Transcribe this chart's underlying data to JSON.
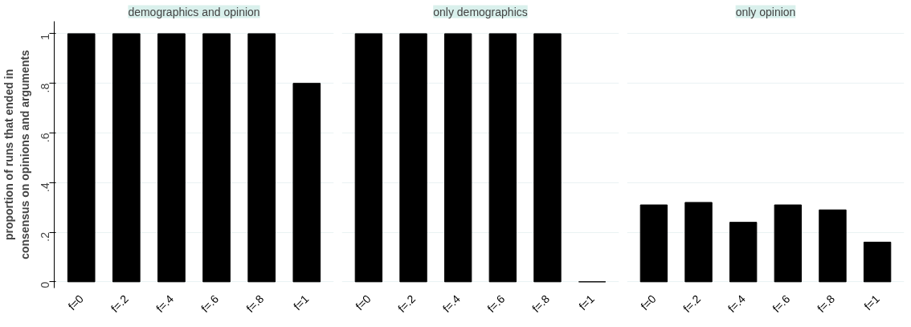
{
  "chart_data": [
    {
      "type": "bar",
      "title": "demographics and opinion",
      "ylabel": "proportion of runs that ended in\nconsensus on opinions and arguments",
      "categories": [
        "f=0",
        "f=.2",
        "f=.4",
        "f=.6",
        "f=.8",
        "f=1"
      ],
      "values": [
        1,
        1,
        1,
        1,
        1,
        0.8
      ],
      "color": "#000000",
      "ylim": [
        -0.025,
        1.05
      ],
      "yticks": [
        0,
        {
          "value": 0.2,
          "label": ".2"
        },
        {
          "value": 0.4,
          "label": ".4"
        },
        {
          "value": 0.6,
          "label": ".6"
        },
        {
          "value": 0.8,
          "label": ".8"
        },
        1
      ],
      "grid": "y"
    },
    {
      "type": "bar",
      "title": "only demographics",
      "categories": [
        "f=0",
        "f=.2",
        "f=.4",
        "f=.6",
        "f=.8",
        "f=1"
      ],
      "values": [
        1,
        1,
        1,
        1,
        1,
        0
      ],
      "color": "#000000",
      "yticks": [
        0,
        0.2,
        0.4,
        0.6,
        0.8,
        1
      ],
      "grid": "y",
      "tick_labels": "x"
    },
    {
      "type": "bar",
      "title": "only opinion",
      "categories": [
        "f=0",
        "f=.2",
        "f=.4",
        "f=.6",
        "f=.8",
        "f=1"
      ],
      "values": [
        0.31,
        0.32,
        0.24,
        0.31,
        0.29,
        0.16
      ],
      "color": "#000000",
      "yticks": [
        0,
        0.2,
        0.4,
        0.6,
        0.8,
        1
      ],
      "grid": "y",
      "tick_labels": "x"
    }
  ]
}
